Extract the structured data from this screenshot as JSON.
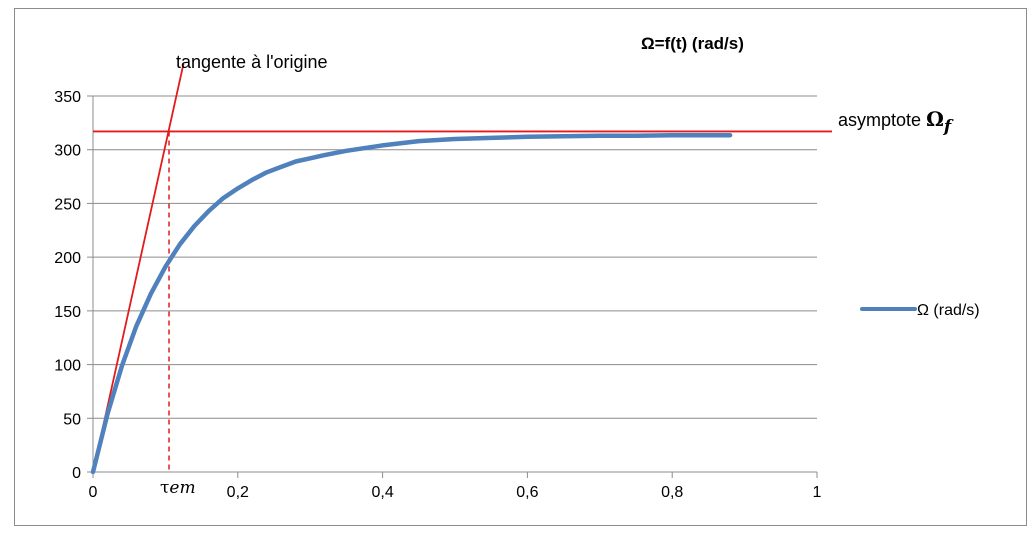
{
  "chart_data": {
    "type": "line",
    "title": "Ω=f(t)  (rad/s)",
    "xlabel": "",
    "ylabel": "",
    "xlim": [
      0,
      1
    ],
    "ylim": [
      0,
      350
    ],
    "x_ticks": [
      0,
      0.2,
      0.4,
      0.6,
      0.8,
      1
    ],
    "x_tick_labels": [
      "0",
      "0,2",
      "0,4",
      "0,6",
      "0,8",
      "1"
    ],
    "y_ticks": [
      0,
      50,
      100,
      150,
      200,
      250,
      300,
      350
    ],
    "y_tick_labels": [
      "0",
      "50",
      "100",
      "150",
      "200",
      "250",
      "300",
      "350"
    ],
    "grid": "horizontal",
    "legend_position": "right",
    "series": [
      {
        "name": "Ω (rad/s)",
        "color": "#4f81bd",
        "x": [
          0,
          0.02,
          0.04,
          0.06,
          0.08,
          0.1,
          0.12,
          0.14,
          0.16,
          0.18,
          0.2,
          0.22,
          0.24,
          0.26,
          0.28,
          0.3,
          0.32,
          0.35,
          0.4,
          0.45,
          0.5,
          0.55,
          0.6,
          0.65,
          0.7,
          0.75,
          0.8,
          0.85,
          0.88
        ],
        "y": [
          0,
          54,
          99,
          136,
          166,
          191,
          212,
          229,
          243,
          255,
          264,
          272,
          279,
          284,
          289,
          292,
          295,
          299,
          304,
          308,
          310,
          311,
          312,
          312.5,
          313,
          313,
          313.5,
          313.5,
          313.5
        ]
      }
    ],
    "annotations": {
      "tangent_label": "tangente à l'origine",
      "asymptote_label": "asymptote",
      "asymptote_symbol": "Ω",
      "asymptote_subscript": "f",
      "tau_label": "τ",
      "tau_suffix": "em",
      "asymptote_value": 317,
      "tau_value": 0.105,
      "tangent_x_end": 0.125,
      "tangent_y_end": 380,
      "line_color": "#e41a1c"
    }
  }
}
